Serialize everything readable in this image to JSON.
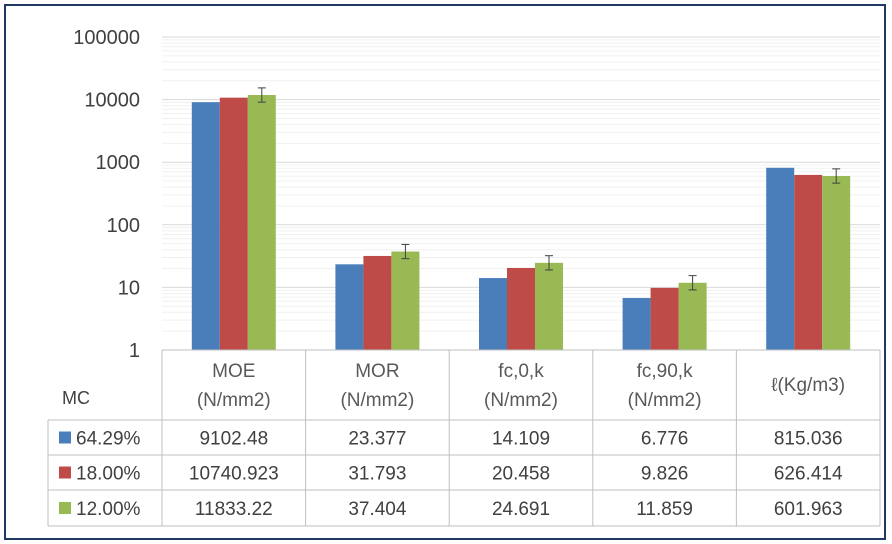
{
  "chart_data": {
    "type": "bar",
    "title": "",
    "xlabel": "",
    "ylabel": "",
    "yscale": "log",
    "ylim": [
      1,
      100000
    ],
    "yticks": [
      "1",
      "10",
      "100",
      "1000",
      "10000",
      "100000"
    ],
    "grid": true,
    "legend": "data-table",
    "table_header": "MC",
    "categories": [
      [
        "MOE",
        "(N/mm2)"
      ],
      [
        "MOR",
        "(N/mm2)"
      ],
      [
        "fc,0,k",
        "(N/mm2)"
      ],
      [
        "fc,90,k",
        "(N/mm2)"
      ],
      [
        "ℓ(Kg/m3)"
      ]
    ],
    "series": [
      {
        "name": "64.29%",
        "color": "#4a7ebb",
        "values": [
          9102.48,
          23.377,
          14.109,
          6.776,
          815.036
        ],
        "labels": [
          "9102.48",
          "23.377",
          "14.109",
          "6.776",
          "815.036"
        ]
      },
      {
        "name": "18.00%",
        "color": "#be4b48",
        "values": [
          10740.923,
          31.793,
          20.458,
          9.826,
          626.414
        ],
        "labels": [
          "10740.923",
          "31.793",
          "20.458",
          "9.826",
          "626.414"
        ]
      },
      {
        "name": "12.00%",
        "color": "#98b954",
        "values": [
          11833.22,
          37.404,
          24.691,
          11.859,
          601.963
        ],
        "labels": [
          "11833.22",
          "37.404",
          "24.691",
          "11.859",
          "601.963"
        ],
        "error_bars": true
      }
    ]
  }
}
